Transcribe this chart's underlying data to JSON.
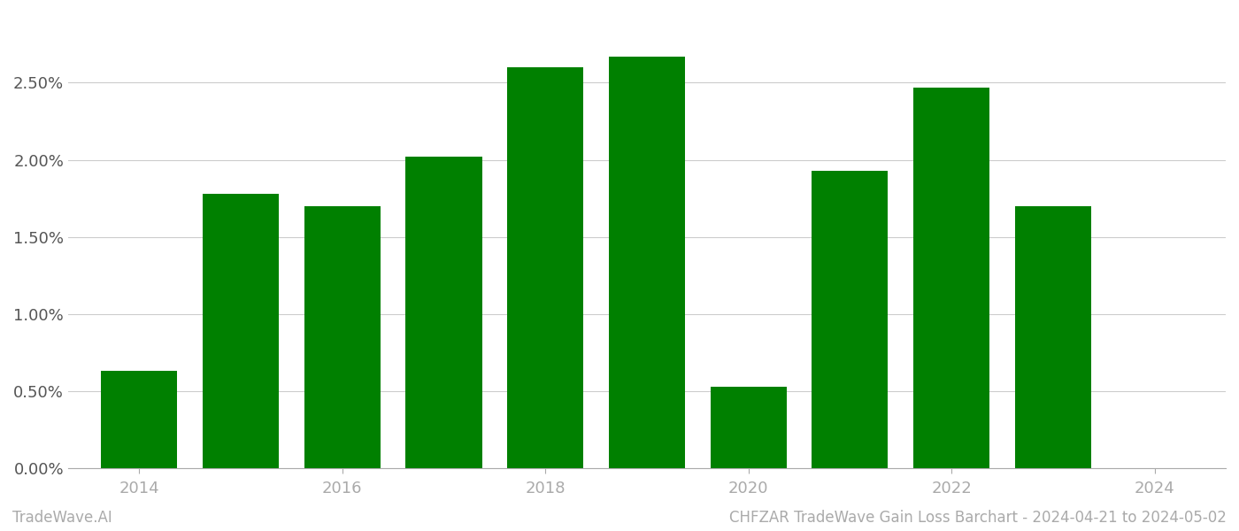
{
  "years": [
    2014,
    2015,
    2016,
    2017,
    2018,
    2019,
    2020,
    2021,
    2022,
    2023
  ],
  "values": [
    0.0063,
    0.0178,
    0.017,
    0.0202,
    0.026,
    0.0267,
    0.0053,
    0.0193,
    0.0247,
    0.017
  ],
  "bar_color": "#008000",
  "background_color": "#ffffff",
  "grid_color": "#cccccc",
  "footer_left": "TradeWave.AI",
  "footer_right": "CHFZAR TradeWave Gain Loss Barchart - 2024-04-21 to 2024-05-02",
  "footer_color": "#aaaaaa",
  "ylim_min": 0.0,
  "ylim_max": 0.0295,
  "ytick_values": [
    0.0,
    0.005,
    0.01,
    0.015,
    0.02,
    0.025
  ],
  "xlim_min": 2013.3,
  "xlim_max": 2024.7,
  "xtick_values": [
    2014,
    2016,
    2018,
    2020,
    2022,
    2024
  ],
  "bar_width": 0.75,
  "tick_fontsize": 13,
  "footer_fontsize": 12
}
